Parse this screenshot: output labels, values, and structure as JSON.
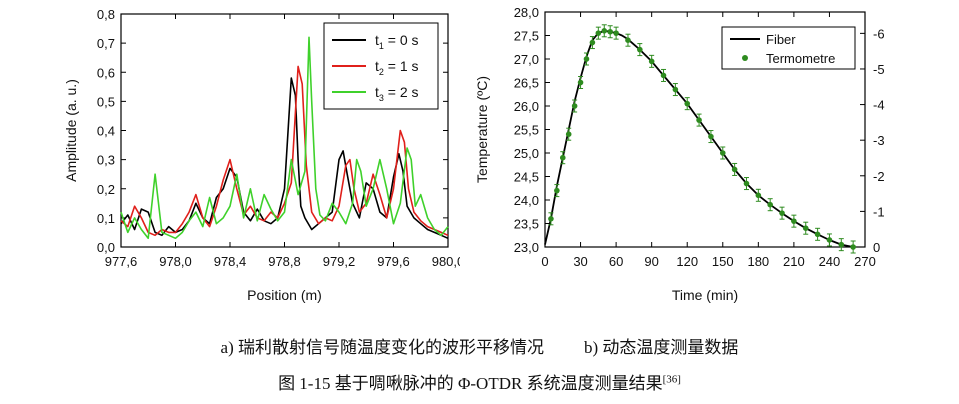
{
  "chart_data": [
    {
      "type": "line",
      "xlabel": "Position (m)",
      "ylabel": "Amplitude (a. u.)",
      "xlim": [
        977.6,
        980.0
      ],
      "ylim": [
        0.0,
        0.8
      ],
      "x_ticks": [
        "977,6",
        "978,0",
        "978,4",
        "978,8",
        "979,2",
        "979,6",
        "980,0"
      ],
      "y_ticks": [
        "0,0",
        "0,1",
        "0,2",
        "0,3",
        "0,4",
        "0,5",
        "0,6",
        "0,7",
        "0,8"
      ],
      "legend_position": "top-right",
      "series": [
        {
          "name": "t1 = 0 s",
          "label_t": "t",
          "label_sub": "1",
          "label_rest": " = 0 s",
          "color": "#000000",
          "x": [
            977.6,
            977.65,
            977.7,
            977.75,
            977.8,
            977.85,
            977.9,
            977.95,
            978.0,
            978.05,
            978.1,
            978.15,
            978.2,
            978.25,
            978.3,
            978.35,
            978.4,
            978.45,
            978.5,
            978.55,
            978.6,
            978.65,
            978.7,
            978.75,
            978.8,
            978.85,
            978.88,
            978.9,
            978.92,
            978.95,
            979.0,
            979.05,
            979.1,
            979.15,
            979.2,
            979.23,
            979.26,
            979.3,
            979.35,
            979.4,
            979.45,
            979.5,
            979.55,
            979.6,
            979.64,
            979.67,
            979.7,
            979.75,
            979.8,
            979.85,
            979.9,
            979.95,
            980.0
          ],
          "y": [
            0.08,
            0.11,
            0.06,
            0.13,
            0.12,
            0.05,
            0.04,
            0.07,
            0.05,
            0.06,
            0.09,
            0.15,
            0.1,
            0.08,
            0.17,
            0.2,
            0.27,
            0.24,
            0.12,
            0.09,
            0.13,
            0.09,
            0.08,
            0.1,
            0.2,
            0.58,
            0.52,
            0.3,
            0.14,
            0.1,
            0.06,
            0.08,
            0.1,
            0.12,
            0.3,
            0.33,
            0.25,
            0.15,
            0.1,
            0.22,
            0.2,
            0.12,
            0.1,
            0.24,
            0.32,
            0.26,
            0.14,
            0.1,
            0.08,
            0.06,
            0.05,
            0.04,
            0.03
          ]
        },
        {
          "name": "t2 = 1 s",
          "label_t": "t",
          "label_sub": "2",
          "label_rest": " = 1 s",
          "color": "#e0201b",
          "x": [
            977.6,
            977.65,
            977.7,
            977.75,
            977.8,
            977.85,
            977.9,
            977.95,
            978.0,
            978.05,
            978.1,
            978.15,
            978.2,
            978.25,
            978.3,
            978.35,
            978.4,
            978.45,
            978.5,
            978.55,
            978.6,
            978.65,
            978.7,
            978.75,
            978.8,
            978.85,
            978.9,
            978.93,
            978.96,
            979.0,
            979.05,
            979.1,
            979.15,
            979.2,
            979.25,
            979.28,
            979.31,
            979.35,
            979.4,
            979.45,
            979.5,
            979.55,
            979.6,
            979.65,
            979.68,
            979.71,
            979.75,
            979.8,
            979.85,
            979.9,
            979.95,
            980.0
          ],
          "y": [
            0.09,
            0.07,
            0.14,
            0.1,
            0.05,
            0.04,
            0.06,
            0.05,
            0.05,
            0.08,
            0.12,
            0.18,
            0.1,
            0.07,
            0.14,
            0.23,
            0.3,
            0.2,
            0.11,
            0.14,
            0.1,
            0.09,
            0.12,
            0.1,
            0.15,
            0.22,
            0.62,
            0.56,
            0.28,
            0.12,
            0.08,
            0.1,
            0.09,
            0.14,
            0.28,
            0.3,
            0.2,
            0.12,
            0.15,
            0.25,
            0.18,
            0.1,
            0.2,
            0.4,
            0.36,
            0.2,
            0.12,
            0.09,
            0.07,
            0.06,
            0.05,
            0.04
          ]
        },
        {
          "name": "t3 = 2 s",
          "label_t": "t",
          "label_sub": "3",
          "label_rest": " = 2 s",
          "color": "#3fd12b",
          "x": [
            977.6,
            977.65,
            977.7,
            977.75,
            977.8,
            977.85,
            977.9,
            977.95,
            978.0,
            978.05,
            978.1,
            978.15,
            978.2,
            978.25,
            978.3,
            978.35,
            978.4,
            978.45,
            978.5,
            978.55,
            978.6,
            978.65,
            978.7,
            978.75,
            978.8,
            978.85,
            978.9,
            978.95,
            978.98,
            979.0,
            979.03,
            979.06,
            979.1,
            979.15,
            979.2,
            979.25,
            979.3,
            979.33,
            979.36,
            979.4,
            979.45,
            979.5,
            979.55,
            979.6,
            979.65,
            979.7,
            979.73,
            979.76,
            979.8,
            979.85,
            979.9,
            979.95,
            980.0
          ],
          "y": [
            0.12,
            0.05,
            0.1,
            0.06,
            0.03,
            0.25,
            0.05,
            0.04,
            0.03,
            0.05,
            0.09,
            0.12,
            0.07,
            0.17,
            0.08,
            0.1,
            0.14,
            0.25,
            0.1,
            0.2,
            0.09,
            0.18,
            0.13,
            0.09,
            0.12,
            0.3,
            0.18,
            0.26,
            0.72,
            0.5,
            0.2,
            0.11,
            0.09,
            0.15,
            0.12,
            0.08,
            0.15,
            0.3,
            0.26,
            0.14,
            0.2,
            0.3,
            0.2,
            0.08,
            0.15,
            0.34,
            0.3,
            0.14,
            0.18,
            0.1,
            0.06,
            0.04,
            0.07
          ]
        }
      ]
    },
    {
      "type": "line",
      "xlabel": "Time (min)",
      "ylabel": "Temperature (ºC)",
      "xlim": [
        0,
        270
      ],
      "ylim": [
        23.0,
        28.0
      ],
      "y2lim": [
        0,
        -6.6
      ],
      "x_ticks": [
        "0",
        "30",
        "60",
        "90",
        "120",
        "150",
        "180",
        "210",
        "240",
        "270"
      ],
      "y_ticks": [
        "23,0",
        "23,5",
        "24,0",
        "24,5",
        "25,0",
        "25,5",
        "26,0",
        "26,5",
        "27,0",
        "27,5",
        "28,0"
      ],
      "y2_ticks": [
        "0",
        "-1",
        "-2",
        "-3",
        "-4",
        "-5",
        "-6"
      ],
      "legend_position": "top-right",
      "series": [
        {
          "name": "Fiber",
          "color": "#000000",
          "x": [
            0,
            5,
            10,
            15,
            20,
            25,
            30,
            35,
            40,
            45,
            50,
            55,
            60,
            65,
            70,
            80,
            90,
            100,
            110,
            120,
            130,
            140,
            150,
            160,
            170,
            180,
            190,
            200,
            210,
            220,
            230,
            240,
            250,
            260
          ],
          "y": [
            23.05,
            23.6,
            24.3,
            24.9,
            25.5,
            26.1,
            26.6,
            27.05,
            27.4,
            27.55,
            27.6,
            27.58,
            27.55,
            27.5,
            27.42,
            27.2,
            26.95,
            26.65,
            26.35,
            26.05,
            25.7,
            25.35,
            25.0,
            24.65,
            24.35,
            24.1,
            23.9,
            23.72,
            23.55,
            23.4,
            23.27,
            23.15,
            23.05,
            23.0
          ]
        },
        {
          "name": "Termometre",
          "color": "#2e8b1f",
          "x": [
            5,
            10,
            15,
            20,
            25,
            30,
            35,
            40,
            45,
            50,
            55,
            60,
            70,
            80,
            90,
            100,
            110,
            120,
            130,
            140,
            150,
            160,
            170,
            180,
            190,
            200,
            210,
            220,
            230,
            240,
            250,
            260
          ],
          "y": [
            23.6,
            24.2,
            24.9,
            25.4,
            26.0,
            26.5,
            27.0,
            27.35,
            27.55,
            27.6,
            27.58,
            27.55,
            27.4,
            27.2,
            26.95,
            26.65,
            26.35,
            26.05,
            25.7,
            25.35,
            25.0,
            24.65,
            24.35,
            24.1,
            23.9,
            23.72,
            23.55,
            23.4,
            23.27,
            23.15,
            23.05,
            23.0
          ]
        }
      ]
    }
  ],
  "captions": {
    "sub_a": "a)  瑞利散射信号随温度变化的波形平移情况",
    "sub_b": "b)  动态温度测量数据",
    "main": "图 1-15  基于啁啾脉冲的 Φ-OTDR 系统温度测量结果",
    "ref": "[36]"
  }
}
